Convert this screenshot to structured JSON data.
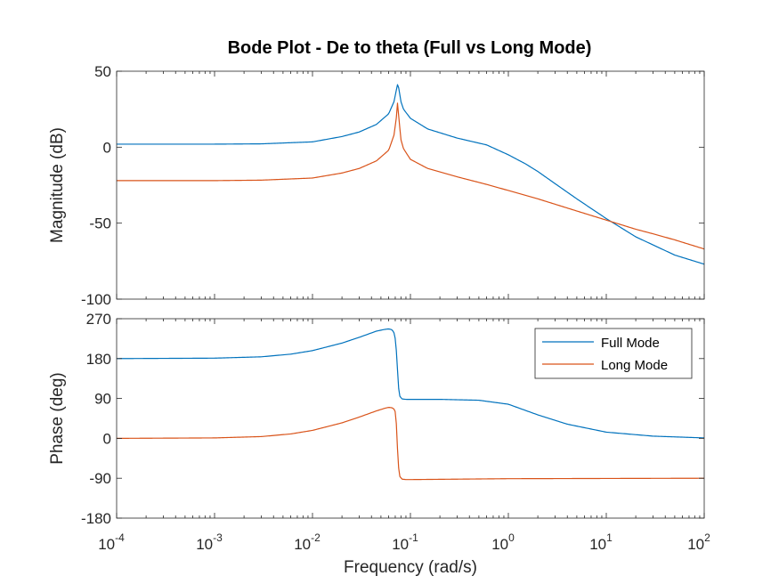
{
  "chart_data": {
    "type": "line",
    "title": "Bode Plot - De to theta (Full vs Long Mode)",
    "xlabel": "Frequency  (rad/s)",
    "xscale": "log",
    "xlim": [
      0.0001,
      100
    ],
    "x_ticks": [
      {
        "base": "10",
        "exp": "-4"
      },
      {
        "base": "10",
        "exp": "-3"
      },
      {
        "base": "10",
        "exp": "-2"
      },
      {
        "base": "10",
        "exp": "-1"
      },
      {
        "base": "10",
        "exp": "0"
      },
      {
        "base": "10",
        "exp": "1"
      },
      {
        "base": "10",
        "exp": "2"
      }
    ],
    "grid": false,
    "legend": {
      "placement": "top-right of phase panel",
      "entries": [
        "Full Mode",
        "Long Mode"
      ]
    },
    "colors": {
      "full": "#0072BD",
      "long": "#D95319"
    },
    "panels": [
      {
        "key": "magnitude",
        "ylabel": "Magnitude (dB)",
        "ylim": [
          -100,
          50
        ],
        "yticks": [
          50,
          0,
          -50,
          -100
        ],
        "series": [
          {
            "name": "Full Mode",
            "x": [
              0.0001,
              0.001,
              0.003,
              0.01,
              0.02,
              0.03,
              0.045,
              0.06,
              0.068,
              0.072,
              0.074,
              0.076,
              0.08,
              0.085,
              0.1,
              0.15,
              0.3,
              0.6,
              1,
              1.5,
              2,
              3,
              5,
              10,
              20,
              50,
              100
            ],
            "y": [
              2,
              2,
              2.2,
              3.5,
              7,
              10,
              15,
              22,
              30,
              38,
              41.5,
              39,
              30,
              25,
              19,
              12,
              6,
              1.5,
              -5,
              -11,
              -16,
              -24,
              -34,
              -47,
              -59,
              -71,
              -77
            ]
          },
          {
            "name": "Long Mode",
            "x": [
              0.0001,
              0.001,
              0.003,
              0.01,
              0.02,
              0.03,
              0.045,
              0.06,
              0.068,
              0.072,
              0.074,
              0.076,
              0.08,
              0.085,
              0.1,
              0.15,
              0.3,
              0.6,
              1,
              2,
              5,
              10,
              20,
              30,
              50,
              100
            ],
            "y": [
              -22,
              -22,
              -21.7,
              -20.3,
              -17,
              -14,
              -9,
              -2,
              8,
              20,
              30,
              20,
              5,
              -1,
              -8,
              -14,
              -19.5,
              -24.5,
              -28.5,
              -34,
              -42,
              -48,
              -54,
              -57,
              -61,
              -67
            ]
          }
        ]
      },
      {
        "key": "phase",
        "ylabel": "Phase (deg)",
        "ylim": [
          -180,
          270
        ],
        "yticks": [
          270,
          180,
          90,
          0,
          -90,
          -180
        ],
        "series": [
          {
            "name": "Full Mode",
            "x": [
              0.0001,
              0.001,
              0.003,
              0.006,
              0.01,
              0.02,
              0.03,
              0.045,
              0.055,
              0.06,
              0.065,
              0.068,
              0.07,
              0.072,
              0.074,
              0.076,
              0.078,
              0.082,
              0.09,
              0.1,
              0.2,
              0.5,
              1,
              2,
              4,
              10,
              30,
              100
            ],
            "y": [
              180,
              181,
              184,
              190,
              198,
              215,
              228,
              242,
              246,
              247,
              245,
              238,
              225,
              195,
              150,
              110,
              95,
              89,
              88,
              88,
              88,
              86,
              77,
              53,
              32,
              14,
              5,
              1
            ]
          },
          {
            "name": "Long Mode",
            "x": [
              0.0001,
              0.001,
              0.003,
              0.006,
              0.01,
              0.02,
              0.03,
              0.045,
              0.055,
              0.06,
              0.065,
              0.068,
              0.07,
              0.072,
              0.074,
              0.076,
              0.078,
              0.082,
              0.09,
              0.1,
              1,
              100
            ],
            "y": [
              0,
              1,
              4,
              10,
              18,
              35,
              48,
              62,
              68,
              70,
              69,
              66,
              60,
              30,
              -30,
              -70,
              -86,
              -92,
              -93,
              -93,
              -91,
              -90
            ]
          }
        ]
      }
    ]
  }
}
